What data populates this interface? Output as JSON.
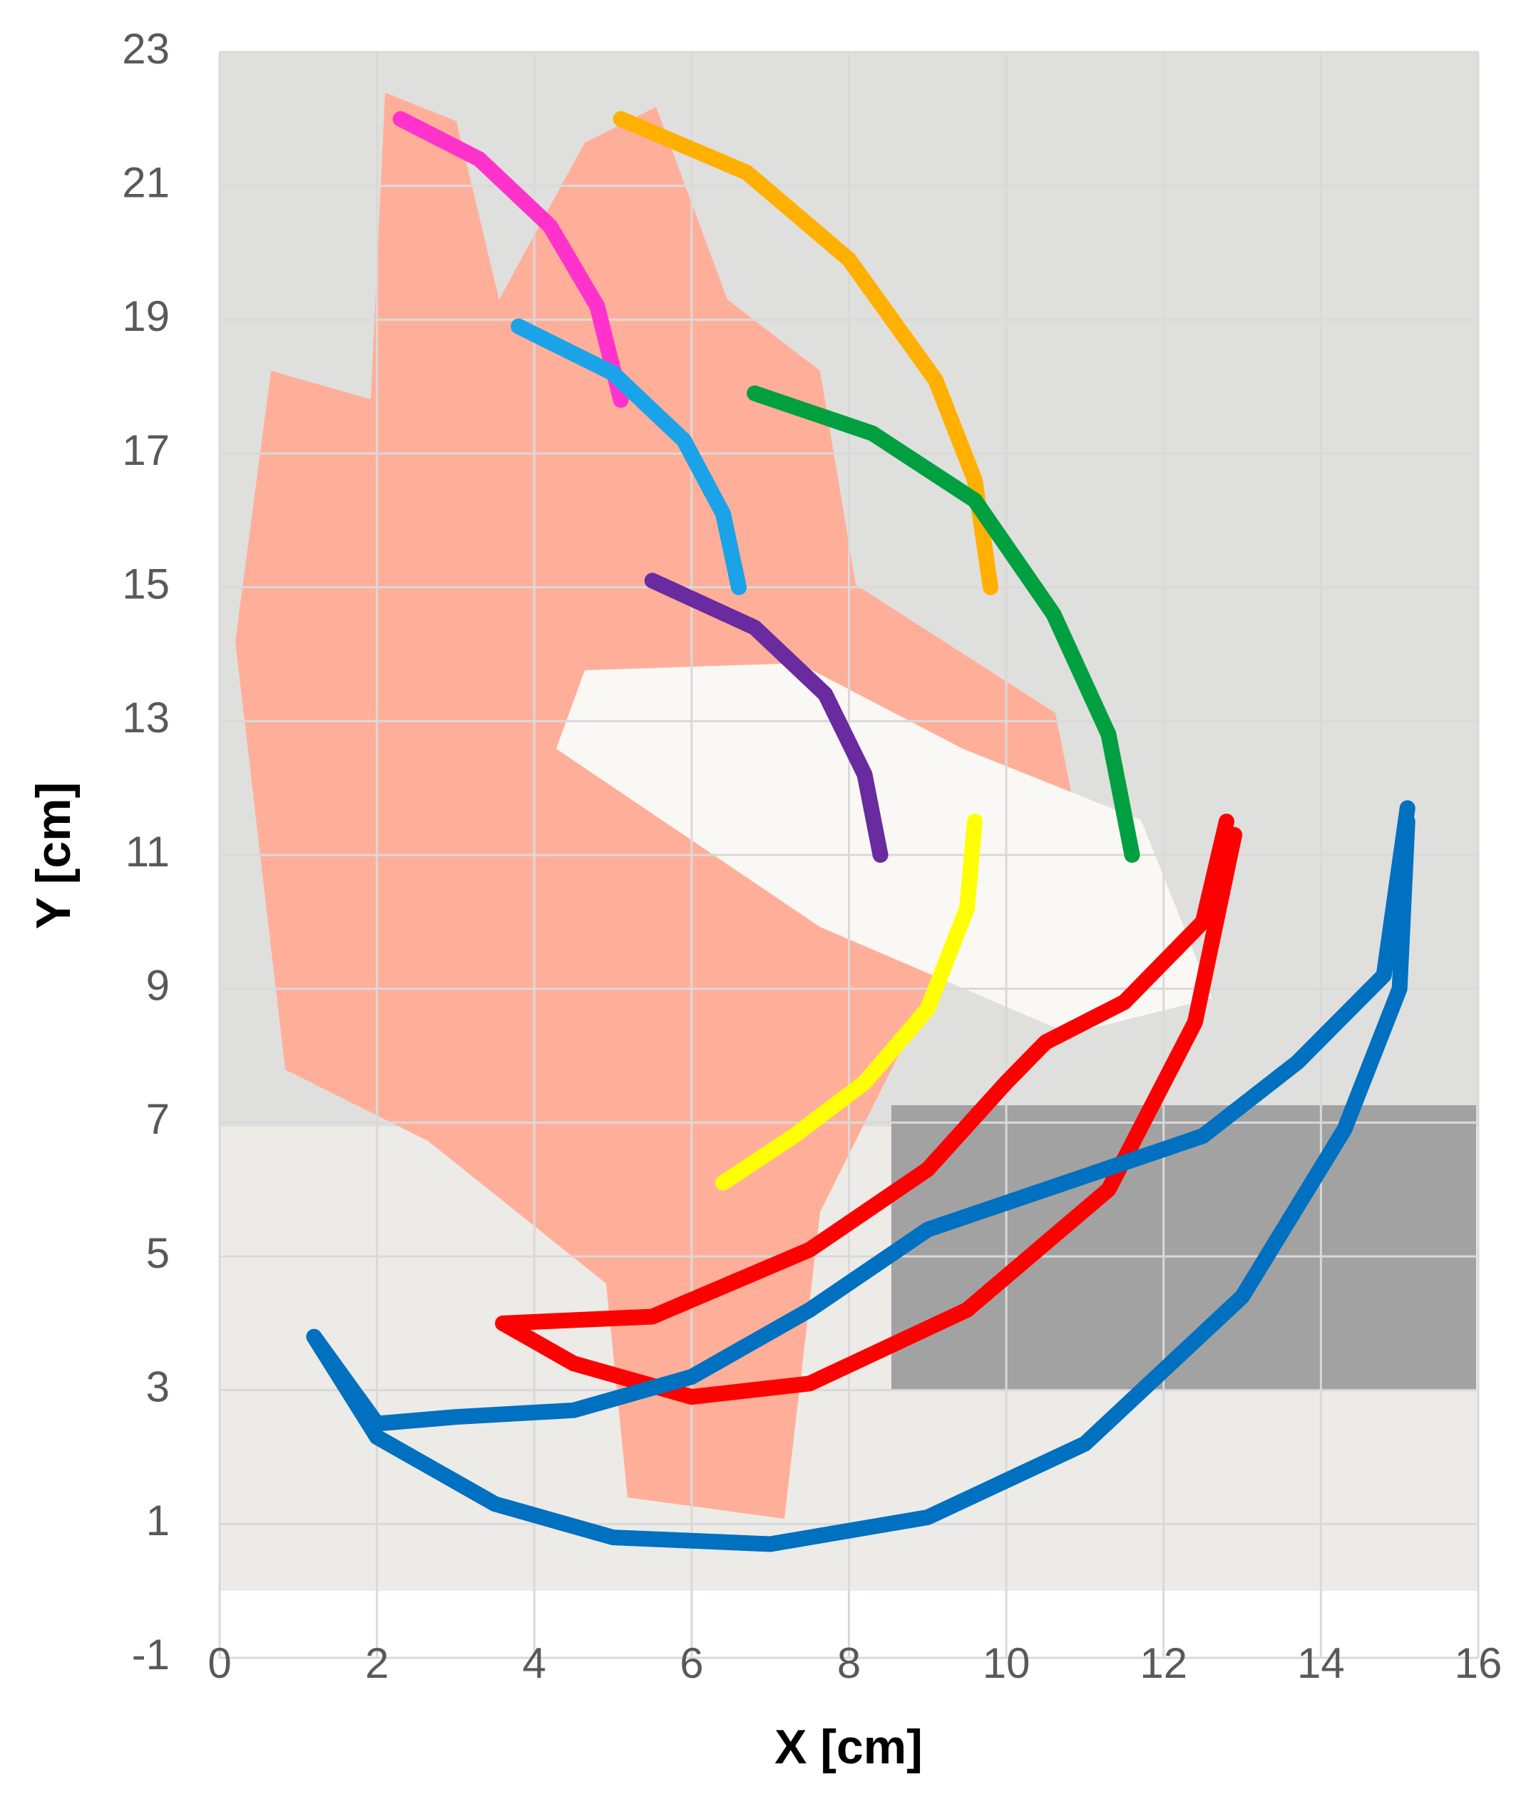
{
  "chart_data": {
    "type": "line",
    "x_label": "X [cm]",
    "y_label": "Y [cm]",
    "xlim": [
      0,
      16
    ],
    "ylim": [
      -1,
      23
    ],
    "xticks": [
      0,
      2,
      4,
      6,
      8,
      10,
      12,
      14,
      16
    ],
    "yticks": [
      -1,
      1,
      3,
      5,
      7,
      9,
      11,
      13,
      15,
      17,
      19,
      21,
      23
    ],
    "grid": true,
    "series": [
      {
        "color": "#ff33cc",
        "x": [
          2.3,
          3.3,
          4.2,
          4.8,
          5.1
        ],
        "y": [
          22,
          21.4,
          20.4,
          19.2,
          17.8
        ]
      },
      {
        "color": "#ffb000",
        "x": [
          5.1,
          6.7,
          8.0,
          9.1,
          9.6,
          9.8
        ],
        "y": [
          22,
          21.2,
          19.9,
          18.1,
          16.6,
          15
        ]
      },
      {
        "color": "#1aa3e8",
        "x": [
          3.8,
          5.0,
          5.9,
          6.4,
          6.6
        ],
        "y": [
          18.9,
          18.2,
          17.2,
          16.1,
          15
        ]
      },
      {
        "color": "#00a040",
        "x": [
          6.8,
          8.3,
          9.6,
          10.6,
          11.3,
          11.6
        ],
        "y": [
          17.9,
          17.3,
          16.3,
          14.6,
          12.8,
          11
        ]
      },
      {
        "color": "#6a2aa0",
        "x": [
          5.5,
          6.8,
          7.7,
          8.2,
          8.4
        ],
        "y": [
          15.1,
          14.4,
          13.4,
          12.2,
          11
        ]
      },
      {
        "color": "#ffff00",
        "x": [
          9.6,
          9.5,
          9.0,
          8.2,
          7.3,
          6.4
        ],
        "y": [
          11.5,
          10.2,
          8.7,
          7.6,
          6.8,
          6.1
        ]
      },
      {
        "color": "#ff0000",
        "x": [
          12.8,
          12.5,
          11.5,
          10.5,
          10,
          9,
          7.5,
          5.5,
          3.6,
          4.5,
          6.0,
          7.5,
          9.5,
          11.3,
          12.4,
          12.9
        ],
        "y": [
          11.5,
          10,
          8.8,
          8.2,
          7.6,
          6.3,
          5.1,
          4.1,
          4.0,
          3.4,
          2.9,
          3.1,
          4.2,
          6.0,
          8.5,
          11.3
        ]
      },
      {
        "color": "#0070c0",
        "x": [
          15.1,
          14.8,
          13.7,
          12.5,
          11,
          10,
          9,
          7.5,
          6,
          4.5,
          3,
          2,
          1.2,
          2,
          3.5,
          5,
          7,
          9,
          11,
          13,
          14.3,
          15,
          15.1
        ],
        "y": [
          11.7,
          9.2,
          7.9,
          6.8,
          6.2,
          5.8,
          5.4,
          4.2,
          3.2,
          2.7,
          2.6,
          2.5,
          3.8,
          2.3,
          1.3,
          0.8,
          0.7,
          1.1,
          2.2,
          4.4,
          6.9,
          9,
          11.5
        ]
      }
    ]
  }
}
